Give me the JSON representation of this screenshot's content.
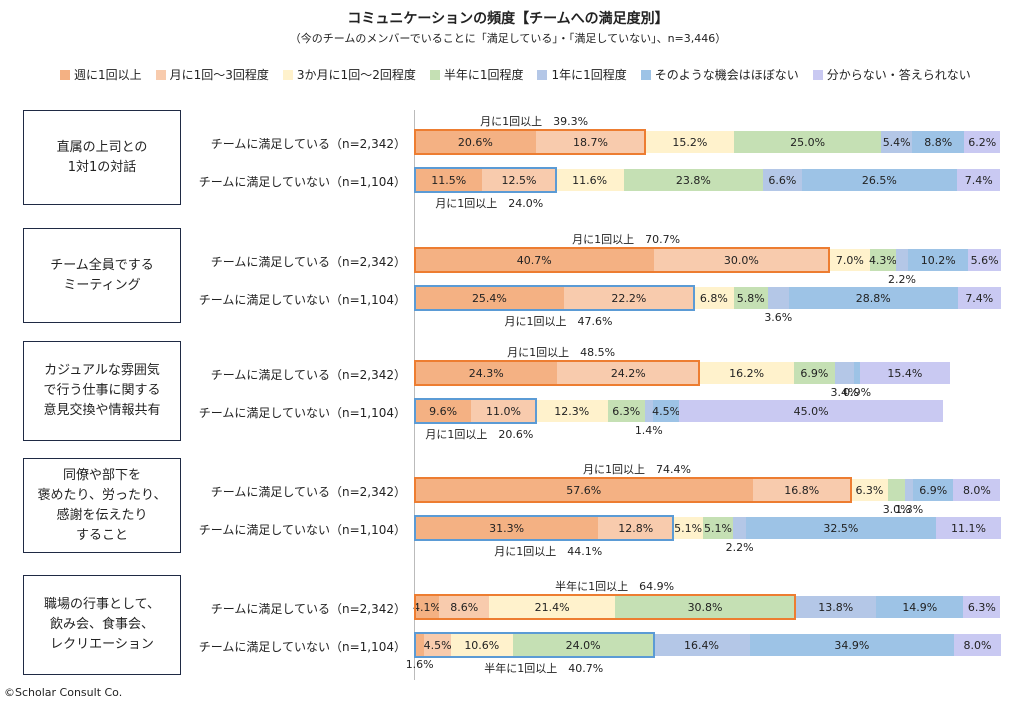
{
  "chart_data": {
    "type": "bar",
    "title": "コミュニケーションの頻度【チームへの満足度別】",
    "subtitle": "（今のチームのメンバーでいることに「満足している」・「満足していない」、n=3,446）",
    "legend": [
      {
        "name": "週に1回以上",
        "color": "#f4b183"
      },
      {
        "name": "月に1回～3回程度",
        "color": "#f8cbad"
      },
      {
        "name": "3か月に1回～2回程度",
        "color": "#fff2cc"
      },
      {
        "name": "半年に1回程度",
        "color": "#c5e0b4"
      },
      {
        "name": "1年に1回程度",
        "color": "#b4c7e7"
      },
      {
        "name": "そのような機会はほぼない",
        "color": "#9dc3e6"
      },
      {
        "name": "分からない・答えられない",
        "color": "#c9c9f2"
      }
    ],
    "groups": [
      {
        "category": "直属の上司との\n1対1の対話",
        "rows": [
          {
            "label": "チームに満足している（n=2,342）",
            "values": [
              20.6,
              18.7,
              15.2,
              25.0,
              5.4,
              8.8,
              6.2
            ],
            "highlight_text": "月に1回以上　39.3%",
            "highlight_count": 2,
            "highlight_color": "#ed7d31"
          },
          {
            "label": "チームに満足していない（n=1,104）",
            "values": [
              11.5,
              12.5,
              11.6,
              23.8,
              6.6,
              26.5,
              7.4
            ],
            "highlight_text": "月に1回以上　24.0%",
            "highlight_count": 2,
            "highlight_color": "#5b9bd5"
          }
        ],
        "extra_labels": []
      },
      {
        "category": "チーム全員でする\nミーティング",
        "rows": [
          {
            "label": "チームに満足している（n=2,342）",
            "values": [
              40.7,
              30.0,
              7.0,
              4.3,
              2.2,
              10.2,
              5.6
            ],
            "highlight_text": "月に1回以上　70.7%",
            "highlight_count": 2,
            "highlight_color": "#ed7d31"
          },
          {
            "label": "チームに満足していない（n=1,104）",
            "values": [
              25.4,
              22.2,
              6.8,
              5.8,
              3.6,
              28.8,
              7.4
            ],
            "highlight_text": "月に1回以上　47.6%",
            "highlight_count": 2,
            "highlight_color": "#5b9bd5"
          }
        ]
      },
      {
        "category": "カジュアルな雰囲気\nで行う仕事に関する\n意見交換や情報共有",
        "rows": [
          {
            "label": "チームに満足している（n=2,342）",
            "values": [
              24.3,
              24.2,
              16.2,
              6.9,
              3.4,
              0.9,
              15.4
            ],
            "highlight_text": "月に1回以上　48.5%",
            "highlight_count": 2,
            "highlight_color": "#ed7d31"
          },
          {
            "label": "チームに満足していない（n=1,104）",
            "values": [
              9.6,
              11.0,
              12.3,
              6.3,
              1.4,
              4.5,
              45.0
            ],
            "highlight_text": "月に1回以上　20.6%",
            "highlight_count": 2,
            "highlight_color": "#5b9bd5"
          }
        ]
      },
      {
        "category": "同僚や部下を\n褒めたり、労ったり、\n感謝を伝えたり\nすること",
        "rows": [
          {
            "label": "チームに満足している（n=2,342）",
            "values": [
              57.6,
              16.8,
              6.3,
              3.0,
              1.3,
              6.9,
              8.0
            ],
            "highlight_text": "月に1回以上　74.4%",
            "highlight_count": 2,
            "highlight_color": "#ed7d31"
          },
          {
            "label": "チームに満足していない（n=1,104）",
            "values": [
              31.3,
              12.8,
              5.1,
              5.1,
              2.2,
              32.5,
              11.1
            ],
            "highlight_text": "月に1回以上　44.1%",
            "highlight_count": 2,
            "highlight_color": "#5b9bd5"
          }
        ]
      },
      {
        "category": "職場の行事として、\n飲み会、食事会、\nレクリエーション",
        "rows": [
          {
            "label": "チームに満足している（n=2,342）",
            "values": [
              4.1,
              8.6,
              21.4,
              30.8,
              13.8,
              14.9,
              6.3
            ],
            "highlight_text": "半年に1回以上　64.9%",
            "highlight_count": 4,
            "highlight_color": "#ed7d31"
          },
          {
            "label": "チームに満足していない（n=1,104）",
            "values": [
              1.6,
              4.5,
              10.6,
              24.0,
              16.4,
              34.9,
              8.0
            ],
            "highlight_text": "半年に1回以上　40.7%",
            "highlight_count": 4,
            "highlight_color": "#5b9bd5"
          }
        ]
      }
    ],
    "xlim": [
      0,
      100
    ],
    "footer": "©Scholar Consult Co."
  }
}
